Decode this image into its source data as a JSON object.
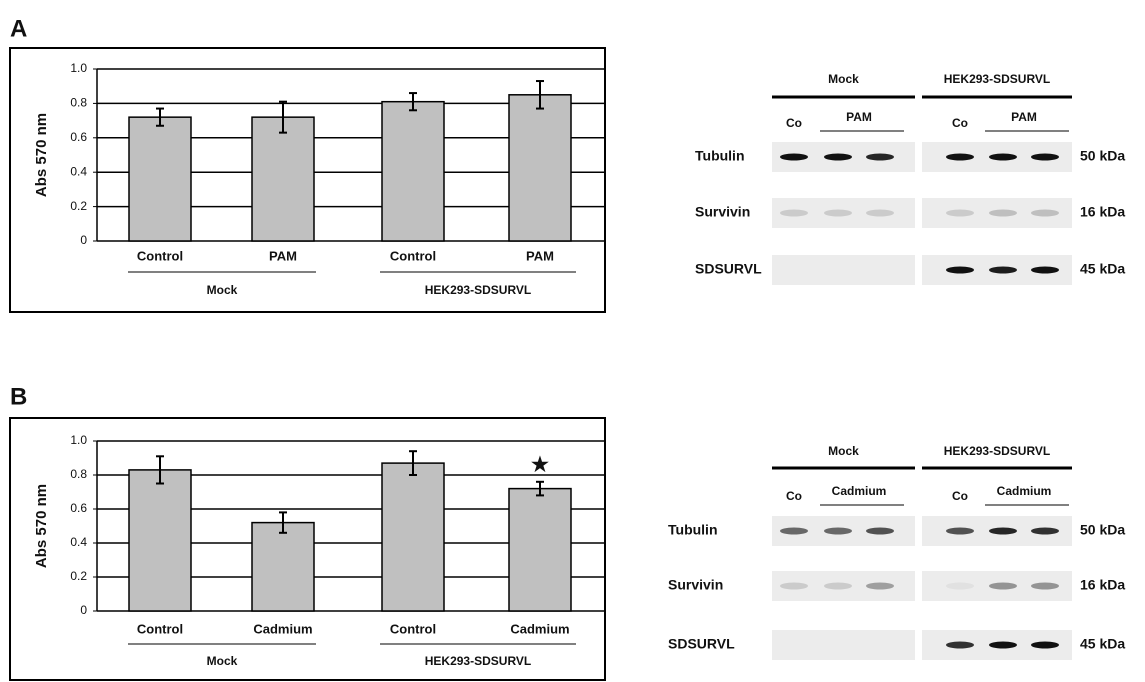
{
  "panel_labels": [
    "A",
    "B"
  ],
  "chart_data": [
    {
      "type": "bar",
      "y_label": "Abs 570 nm",
      "categories": [
        "Control",
        "PAM",
        "Control",
        "PAM"
      ],
      "groups": [
        "Mock",
        "HEK293-SDSURVL"
      ],
      "values": [
        0.72,
        0.72,
        0.81,
        0.85
      ],
      "errors": [
        0.05,
        0.09,
        0.05,
        0.08
      ],
      "color": "#c0c0c0",
      "ylim": [
        0,
        1
      ],
      "yticks": [
        0,
        0.2,
        0.4,
        0.6,
        0.8,
        {
          "value": 1,
          "label": "1.0"
        }
      ],
      "grid": true
    },
    {
      "type": "bar",
      "y_label": "Abs 570 nm",
      "categories": [
        "Control",
        "Cadmium",
        "Control",
        "Cadmium"
      ],
      "groups": [
        "Mock",
        "HEK293-SDSURVL"
      ],
      "values": [
        0.83,
        0.52,
        0.87,
        0.72
      ],
      "errors": [
        0.08,
        0.06,
        0.07,
        0.04
      ],
      "color": "#c0c0c0",
      "ylim": [
        0,
        1
      ],
      "yticks": [
        0,
        0.2,
        0.4,
        0.6,
        0.8,
        {
          "value": 1,
          "label": "1.0"
        }
      ],
      "grid": true,
      "annotation": "★"
    }
  ],
  "blots": [
    {
      "groups": [
        {
          "name": "Mock",
          "control": "Co",
          "treatment": "PAM"
        },
        {
          "name": "HEK293-SDSURVL",
          "control": "Co",
          "treatment": "PAM"
        }
      ],
      "rows": [
        {
          "name": "Tubulin",
          "size": "50 kDa"
        },
        {
          "name": "Survivin",
          "size": "16 kDa"
        },
        {
          "name": "SDSURVL",
          "size": "45 kDa"
        }
      ]
    },
    {
      "groups": [
        {
          "name": "Mock",
          "control": "Co",
          "treatment": "Cadmium"
        },
        {
          "name": "HEK293-SDSURVL",
          "control": "Co",
          "treatment": "Cadmium"
        }
      ],
      "rows": [
        {
          "name": "Tubulin",
          "size": "50 kDa"
        },
        {
          "name": "Survivin",
          "size": "16 kDa"
        },
        {
          "name": "SDSURVL",
          "size": "45 kDa"
        }
      ]
    }
  ]
}
